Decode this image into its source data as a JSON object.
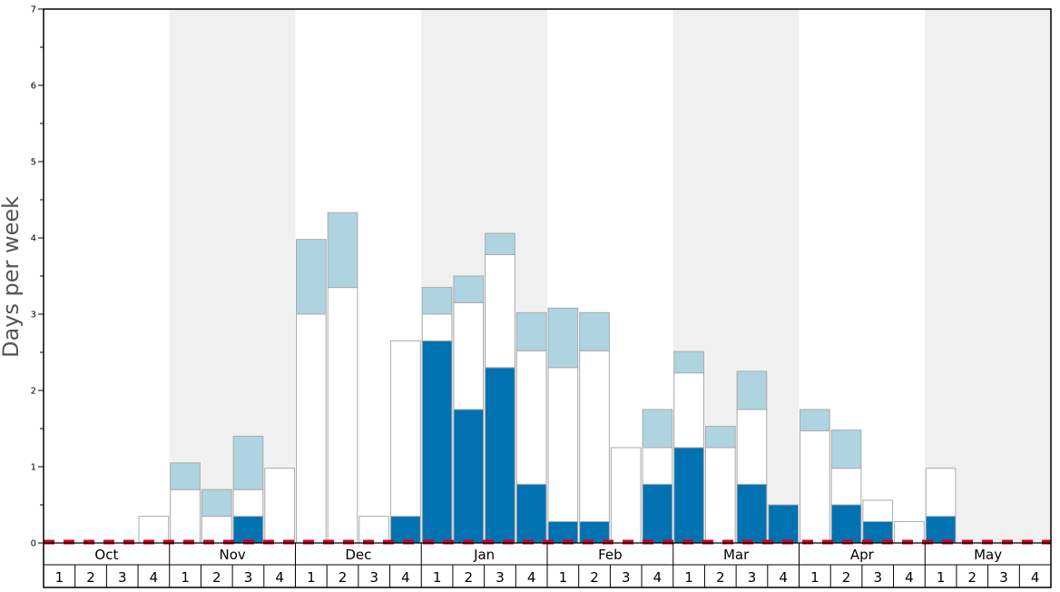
{
  "chart_data": {
    "type": "bar",
    "stacked": true,
    "ylabel": "Days per week",
    "ylim": [
      0,
      7
    ],
    "y_major_ticks": [
      "0",
      "1",
      "2",
      "3",
      "4",
      "5",
      "6",
      "7"
    ],
    "months": [
      "Oct",
      "Nov",
      "Dec",
      "Jan",
      "Feb",
      "Mar",
      "Apr",
      "May"
    ],
    "weeks": [
      "1",
      "2",
      "3",
      "4"
    ],
    "shaded_months": [
      "Nov",
      "Jan",
      "Mar",
      "May"
    ],
    "colors": {
      "bottom": "#0072b2",
      "middle": "#ffffff",
      "top": "#aed4e2",
      "bar_border": "#aaaaaa",
      "shade": "#f0f0f0",
      "reference_line": "#cc0022"
    },
    "reference_line_value": 0,
    "series": [
      {
        "key": "bottom",
        "values": [
          0,
          0,
          0,
          0,
          0,
          0,
          0.35,
          0,
          0,
          0,
          0,
          0.35,
          2.65,
          1.75,
          2.3,
          0.77,
          0.28,
          0.28,
          0,
          0.77,
          1.25,
          0,
          0.77,
          0.5,
          0,
          0.5,
          0.28,
          0,
          0.35,
          0,
          0,
          0
        ]
      },
      {
        "key": "middle",
        "values": [
          0,
          0,
          0,
          0.35,
          0.7,
          0.35,
          0.35,
          0.98,
          3.0,
          3.35,
          0.35,
          2.3,
          0.35,
          1.4,
          1.48,
          1.75,
          2.02,
          2.24,
          1.25,
          0.48,
          0.98,
          1.25,
          0.98,
          0,
          1.47,
          0.48,
          0.28,
          0.28,
          0.63,
          0,
          0,
          0
        ]
      },
      {
        "key": "top",
        "values": [
          0,
          0,
          0,
          0,
          0.35,
          0.35,
          0.7,
          0,
          0.98,
          0.98,
          0,
          0,
          0.35,
          0.35,
          0.28,
          0.5,
          0.78,
          0.5,
          0,
          0.5,
          0.28,
          0.28,
          0.5,
          0,
          0.28,
          0.5,
          0,
          0,
          0,
          0,
          0,
          0
        ]
      }
    ]
  }
}
